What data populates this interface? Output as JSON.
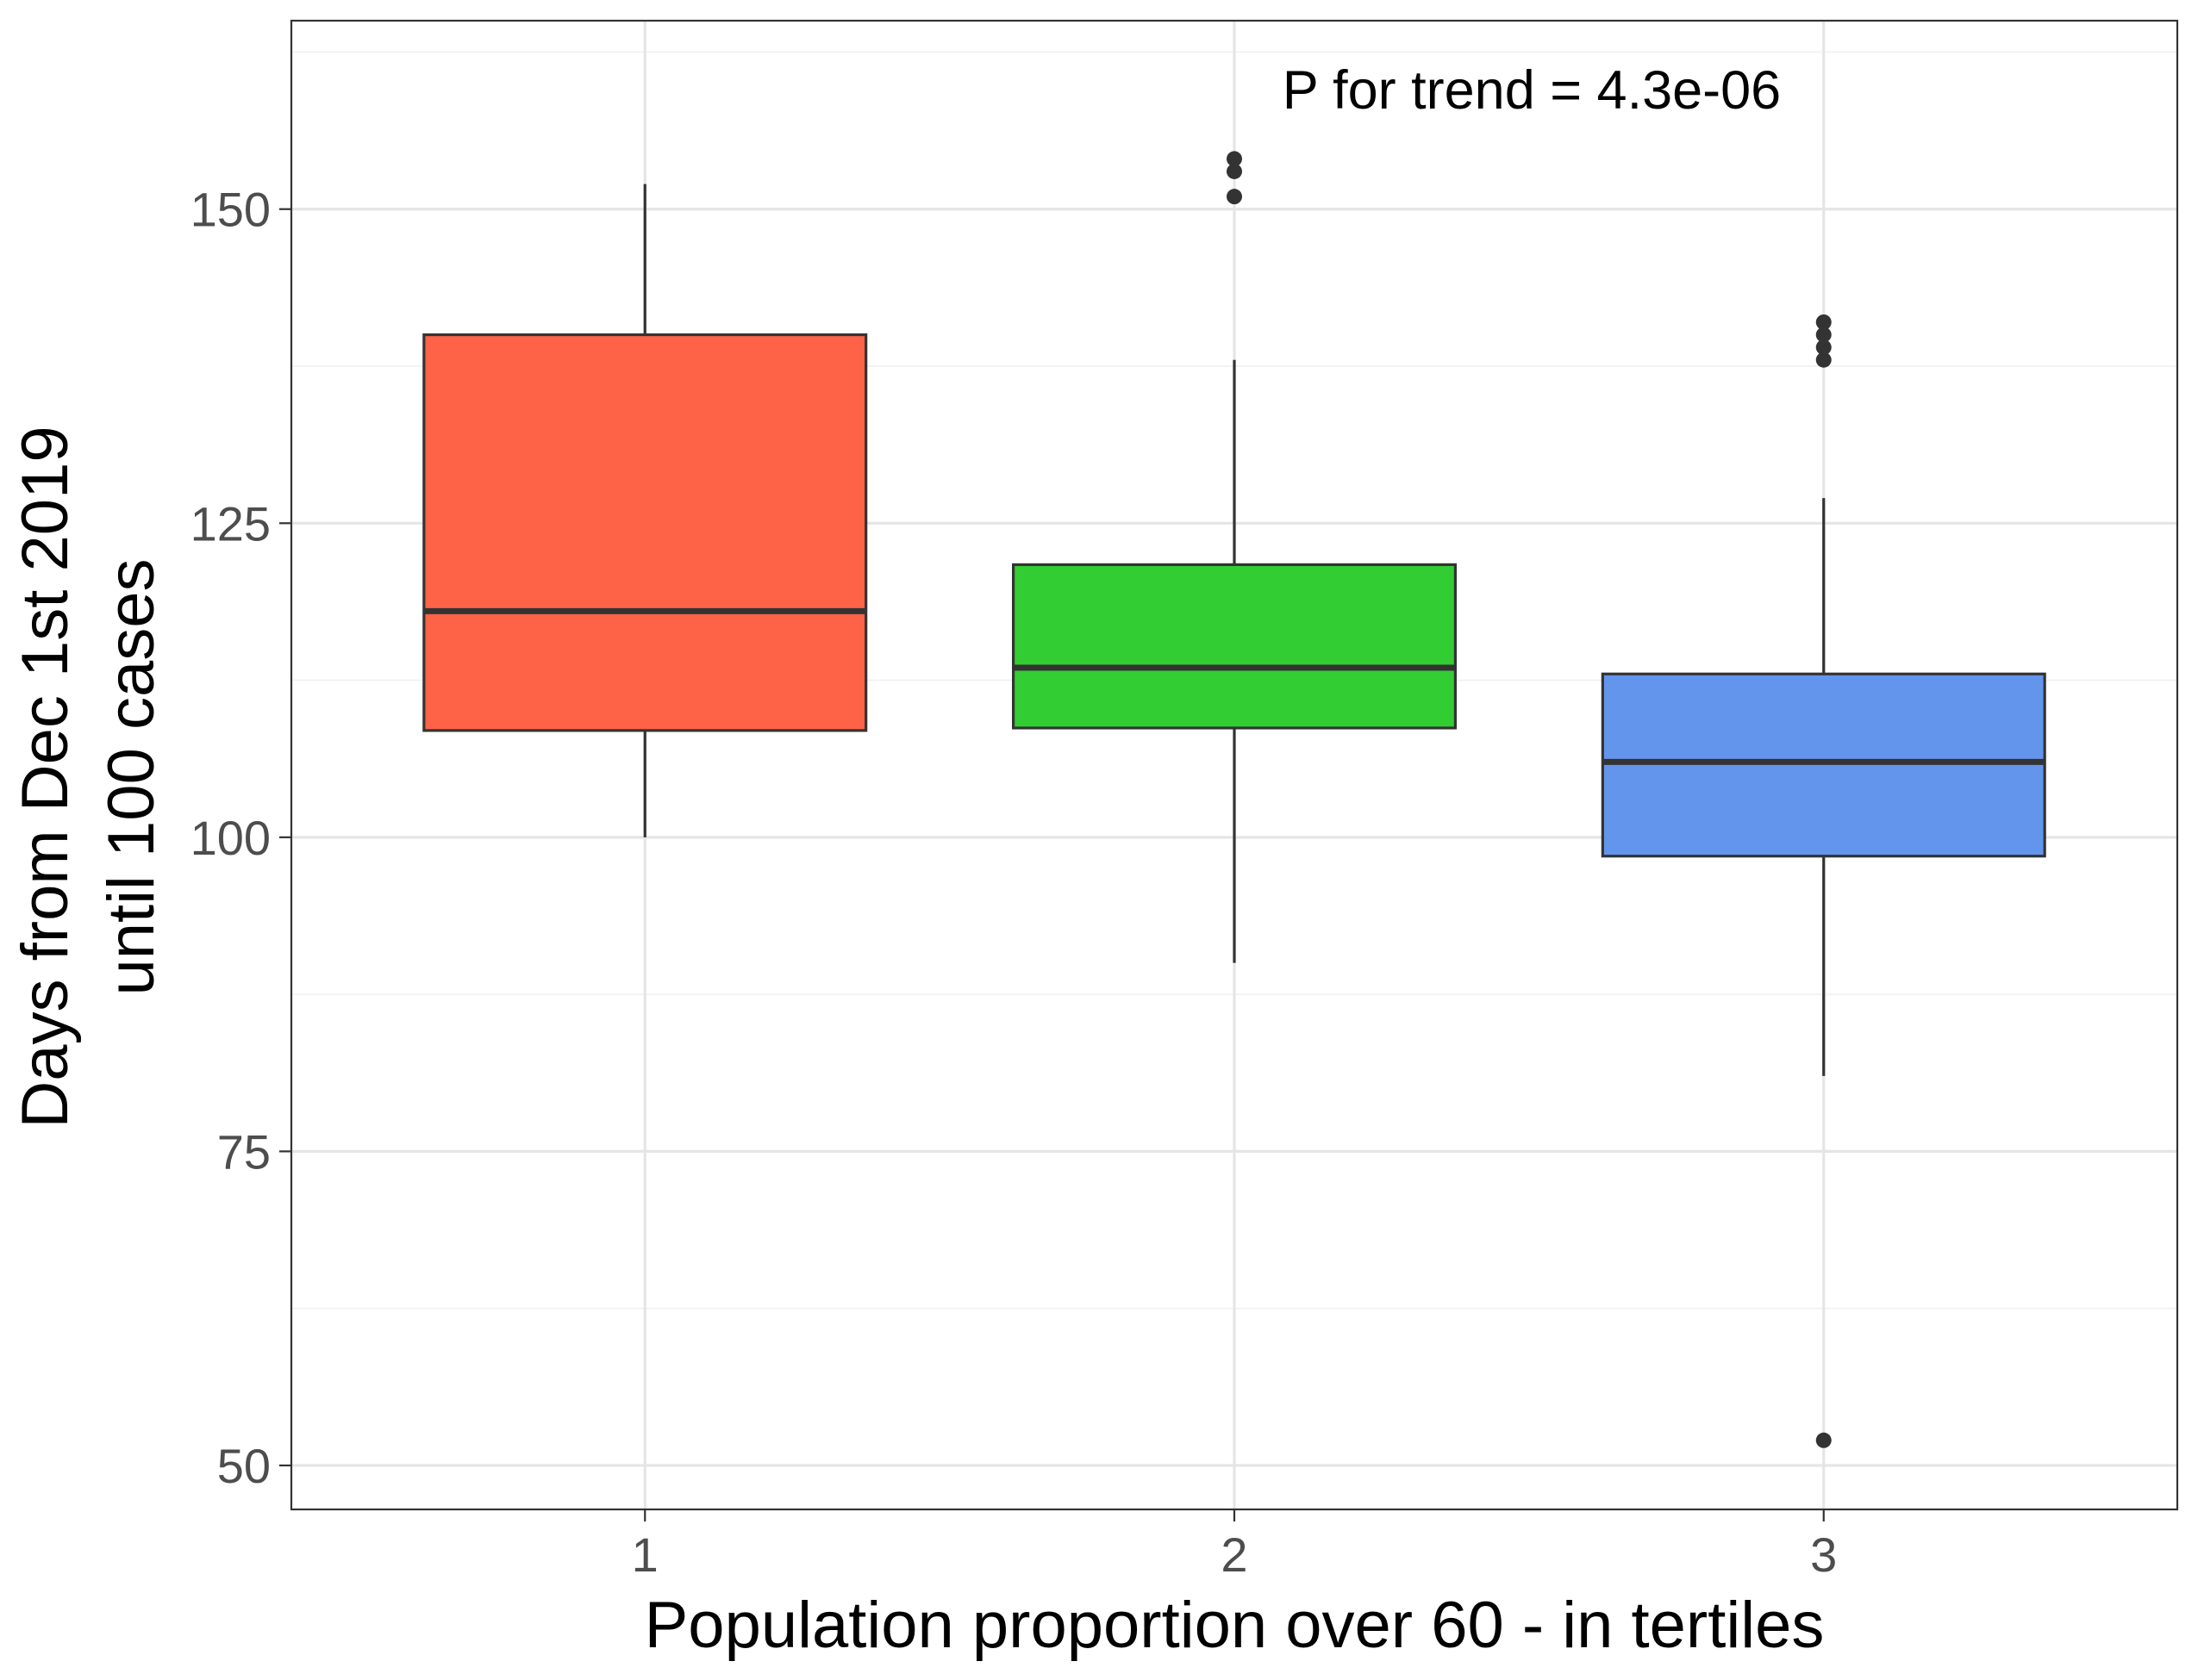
{
  "chart_data": {
    "type": "box",
    "xlabel": "Population proportion over 60 - in tertiles",
    "ylabel_lines": [
      "Days from Dec 1st 2019",
      "until 100 cases"
    ],
    "annotation": "P for trend = 4.3e-06",
    "ylim": [
      46.5,
      165
    ],
    "y_major_ticks": [
      50,
      75,
      100,
      125,
      150
    ],
    "y_minor_ticks": [
      62.5,
      87.5,
      112.5,
      137.5,
      162.5
    ],
    "grid": true,
    "categories": [
      "1",
      "2",
      "3"
    ],
    "boxes": [
      {
        "category": "1",
        "lower_whisker": 100,
        "q1": 108.5,
        "median": 118,
        "q3": 140,
        "upper_whisker": 152,
        "outliers": [],
        "fill": "#FF6347"
      },
      {
        "category": "2",
        "lower_whisker": 90,
        "q1": 108.7,
        "median": 113.5,
        "q3": 121.7,
        "upper_whisker": 138,
        "outliers": [
          151,
          153,
          154
        ],
        "fill": "#32CD32"
      },
      {
        "category": "3",
        "lower_whisker": 81,
        "q1": 98.5,
        "median": 106,
        "q3": 113,
        "upper_whisker": 127,
        "outliers": [
          52,
          138,
          139,
          140,
          141
        ],
        "fill": "#6495ED"
      }
    ]
  }
}
